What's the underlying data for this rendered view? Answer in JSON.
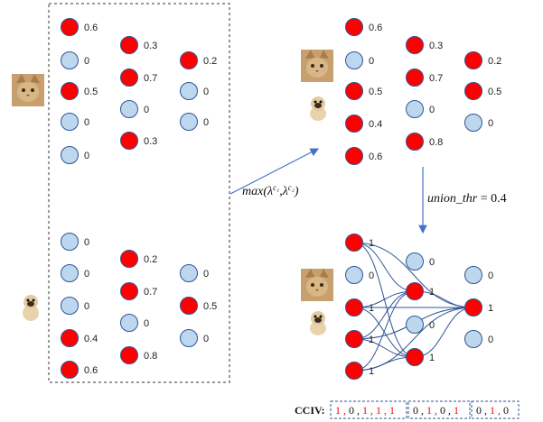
{
  "colors": {
    "active": "#ff0000",
    "inactive": "#bdd7ee",
    "edge": "#2f5597",
    "arrow": "#4472c4"
  },
  "icons": {
    "cat": "cat-photo-icon",
    "dog": "pug-photo-icon"
  },
  "left_panel": {
    "cat_block": {
      "col1": [
        "0.6",
        "0",
        "0.5",
        "0",
        "0"
      ],
      "col2": [
        "0.3",
        "0.7",
        "0",
        "0.3"
      ],
      "col3": [
        "0.2",
        "0",
        "0"
      ]
    },
    "dog_block": {
      "col1": [
        "0",
        "0",
        "0",
        "0.4",
        "0.6"
      ],
      "col2": [
        "0.2",
        "0.7",
        "0",
        "0.8"
      ],
      "col3": [
        "0",
        "0.5",
        "0"
      ]
    }
  },
  "max_label": "max(λ^{c1}, λ^{c2})",
  "top_right": {
    "col1": [
      "0.6",
      "0",
      "0.5",
      "0.4",
      "0.6"
    ],
    "col2": [
      "0.3",
      "0.7",
      "0",
      "0.8"
    ],
    "col3": [
      "0.2",
      "0.5",
      "0"
    ]
  },
  "threshold": {
    "name": "union_thr",
    "value": "0.4"
  },
  "bottom_right": {
    "col1": [
      "1",
      "0",
      "1",
      "1",
      "1"
    ],
    "col2": [
      "0",
      "1",
      "0",
      "1"
    ],
    "col3": [
      "0",
      "1",
      "0"
    ]
  },
  "cciv": {
    "label": "CCIV:",
    "groups": [
      [
        "1",
        "0",
        "1",
        "1",
        "1"
      ],
      [
        "0",
        "1",
        "0",
        "1"
      ],
      [
        "0",
        "1",
        "0"
      ]
    ]
  }
}
